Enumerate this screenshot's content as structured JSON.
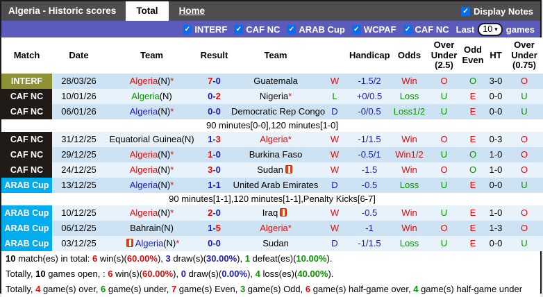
{
  "titlebar": {
    "title": "Algeria - Historic scores",
    "tabs": [
      {
        "label": "Total",
        "active": true
      },
      {
        "label": "Home",
        "active": false
      }
    ],
    "display_notes_label": "Display Notes",
    "display_notes_checked": true
  },
  "filterbar": {
    "competitions": [
      "INTERF",
      "CAF NC",
      "ARAB Cup",
      "WCPAF",
      "CAF NC"
    ],
    "last_label": "Last",
    "games_count": "10",
    "games_label": "games"
  },
  "colors": {
    "accent_bar": "#5b5bbb",
    "interf": "#8e9134",
    "caf_nc": "#201b16",
    "arab_cup": "#00aeef",
    "win_red": "#e20a0a",
    "loss_green": "#089000",
    "draw_navy": "#1a1ab8"
  },
  "table": {
    "headers": [
      "Match",
      "Date",
      "Team",
      "Result",
      "Team",
      "",
      "Handicap",
      "Odds",
      "Over Under (2.5)",
      "Odd Even",
      "HT",
      "Over Under (0.75)"
    ],
    "rows": [
      {
        "type": "match",
        "comp": "INTERF",
        "compClass": "comp-interf",
        "date": "28/03/26",
        "home": [
          {
            "t": "Algeria",
            "c": "red"
          },
          {
            "t": "(N)",
            "c": "black"
          },
          {
            "t": "*",
            "c": "red"
          }
        ],
        "score": [
          {
            "t": "7",
            "c": "red"
          },
          {
            "t": "-",
            "c": "navy"
          },
          {
            "t": "0",
            "c": "navy"
          }
        ],
        "away": [
          {
            "t": "Guatemala",
            "c": "black"
          }
        ],
        "wld": {
          "t": "W",
          "c": "red"
        },
        "handicap": "-1.5/2",
        "odds": {
          "t": "Win",
          "c": "red"
        },
        "ou25": {
          "t": "O",
          "c": "red"
        },
        "oddEven": {
          "t": "O",
          "c": "green"
        },
        "ht": "3-0",
        "ou075": {
          "t": "O",
          "c": "red"
        }
      },
      {
        "type": "match",
        "comp": "CAF NC",
        "compClass": "comp-cafnc",
        "date": "10/01/26",
        "home": [
          {
            "t": "Algeria",
            "c": "green"
          },
          {
            "t": "(N)",
            "c": "black"
          }
        ],
        "score": [
          {
            "t": "0",
            "c": "navy"
          },
          {
            "t": "-",
            "c": "navy"
          },
          {
            "t": "2",
            "c": "red"
          }
        ],
        "away": [
          {
            "t": "Nigeria",
            "c": "black"
          },
          {
            "t": "*",
            "c": "red"
          }
        ],
        "wld": {
          "t": "L",
          "c": "green"
        },
        "handicap": "+0/0.5",
        "odds": {
          "t": "Loss",
          "c": "green"
        },
        "ou25": {
          "t": "U",
          "c": "green"
        },
        "oddEven": {
          "t": "E",
          "c": "red"
        },
        "ht": "0-0",
        "ou075": {
          "t": "U",
          "c": "green"
        }
      },
      {
        "type": "match",
        "comp": "CAF NC",
        "compClass": "comp-cafnc",
        "date": "06/01/26",
        "home": [
          {
            "t": "Algeria",
            "c": "navy"
          },
          {
            "t": "(N)",
            "c": "black"
          },
          {
            "t": "*",
            "c": "red"
          }
        ],
        "score": [
          {
            "t": "0",
            "c": "navy"
          },
          {
            "t": "-",
            "c": "navy"
          },
          {
            "t": "0",
            "c": "navy"
          }
        ],
        "away": [
          {
            "t": "Democratic Rep Congo",
            "c": "black"
          }
        ],
        "wld": {
          "t": "D",
          "c": "navy"
        },
        "handicap": "-0/0.5",
        "odds": {
          "t": "Loss1/2",
          "c": "green"
        },
        "ou25": {
          "t": "U",
          "c": "green"
        },
        "oddEven": {
          "t": "E",
          "c": "red"
        },
        "ht": "0-0",
        "ou075": {
          "t": "U",
          "c": "green"
        }
      },
      {
        "type": "note",
        "text": "90 minutes[0-0],120 minutes[1-0]"
      },
      {
        "type": "match",
        "comp": "CAF NC",
        "compClass": "comp-cafnc",
        "date": "31/12/25",
        "home": [
          {
            "t": "Equatorial Guinea(N)",
            "c": "black"
          }
        ],
        "score": [
          {
            "t": "1",
            "c": "navy"
          },
          {
            "t": "-",
            "c": "navy"
          },
          {
            "t": "3",
            "c": "red"
          }
        ],
        "away": [
          {
            "t": "Algeria",
            "c": "red"
          },
          {
            "t": "*",
            "c": "red"
          }
        ],
        "wld": {
          "t": "W",
          "c": "red"
        },
        "handicap": "-1/1.5",
        "odds": {
          "t": "Win",
          "c": "red"
        },
        "ou25": {
          "t": "O",
          "c": "red"
        },
        "oddEven": {
          "t": "E",
          "c": "red"
        },
        "ht": "0-3",
        "ou075": {
          "t": "O",
          "c": "red"
        }
      },
      {
        "type": "match",
        "comp": "CAF NC",
        "compClass": "comp-cafnc",
        "date": "29/12/25",
        "home": [
          {
            "t": "Algeria",
            "c": "red"
          },
          {
            "t": "(N)",
            "c": "black"
          },
          {
            "t": "*",
            "c": "red"
          }
        ],
        "score": [
          {
            "t": "1",
            "c": "red"
          },
          {
            "t": "-",
            "c": "navy"
          },
          {
            "t": "0",
            "c": "navy"
          }
        ],
        "away": [
          {
            "t": "Burkina Faso",
            "c": "black"
          }
        ],
        "wld": {
          "t": "W",
          "c": "red"
        },
        "handicap": "-0.5/1",
        "odds": {
          "t": "Win1/2",
          "c": "red"
        },
        "ou25": {
          "t": "U",
          "c": "green"
        },
        "oddEven": {
          "t": "O",
          "c": "green"
        },
        "ht": "1-0",
        "ou075": {
          "t": "O",
          "c": "red"
        }
      },
      {
        "type": "match",
        "comp": "CAF NC",
        "compClass": "comp-cafnc",
        "date": "24/12/25",
        "home": [
          {
            "t": "Algeria",
            "c": "red"
          },
          {
            "t": "(N)",
            "c": "black"
          },
          {
            "t": "*",
            "c": "red"
          }
        ],
        "score": [
          {
            "t": "3",
            "c": "red"
          },
          {
            "t": "-",
            "c": "navy"
          },
          {
            "t": "0",
            "c": "navy"
          }
        ],
        "away": [
          {
            "t": "Sudan",
            "c": "black"
          },
          {
            "icon": true
          }
        ],
        "wld": {
          "t": "W",
          "c": "red"
        },
        "handicap": "-1.5",
        "odds": {
          "t": "Win",
          "c": "red"
        },
        "ou25": {
          "t": "O",
          "c": "red"
        },
        "oddEven": {
          "t": "O",
          "c": "green"
        },
        "ht": "1-0",
        "ou075": {
          "t": "O",
          "c": "red"
        }
      },
      {
        "type": "match",
        "comp": "ARAB Cup",
        "compClass": "comp-arab",
        "date": "13/12/25",
        "home": [
          {
            "t": "Algeria",
            "c": "navy"
          },
          {
            "t": "(N)",
            "c": "black"
          },
          {
            "t": "*",
            "c": "red"
          }
        ],
        "score": [
          {
            "t": "1",
            "c": "navy"
          },
          {
            "t": "-",
            "c": "navy"
          },
          {
            "t": "1",
            "c": "navy"
          }
        ],
        "away": [
          {
            "t": "United Arab Emirates",
            "c": "black"
          }
        ],
        "wld": {
          "t": "D",
          "c": "navy"
        },
        "handicap": "-0.5",
        "odds": {
          "t": "Loss",
          "c": "green"
        },
        "ou25": {
          "t": "U",
          "c": "green"
        },
        "oddEven": {
          "t": "E",
          "c": "red"
        },
        "ht": "0-0",
        "ou075": {
          "t": "U",
          "c": "green"
        }
      },
      {
        "type": "note",
        "text": "90 minutes[1-1],120 minutes[1-1],Penalty Kicks[6-7]"
      },
      {
        "type": "match",
        "comp": "ARAB Cup",
        "compClass": "comp-arab",
        "date": "10/12/25",
        "home": [
          {
            "t": "Algeria",
            "c": "red"
          },
          {
            "t": "(N)",
            "c": "black"
          },
          {
            "t": "*",
            "c": "red"
          }
        ],
        "score": [
          {
            "t": "2",
            "c": "red"
          },
          {
            "t": "-",
            "c": "navy"
          },
          {
            "t": "0",
            "c": "navy"
          }
        ],
        "away": [
          {
            "t": "Iraq",
            "c": "black"
          },
          {
            "icon": true
          }
        ],
        "wld": {
          "t": "W",
          "c": "red"
        },
        "handicap": "-0.5",
        "odds": {
          "t": "Win",
          "c": "red"
        },
        "ou25": {
          "t": "U",
          "c": "green"
        },
        "oddEven": {
          "t": "E",
          "c": "red"
        },
        "ht": "1-0",
        "ou075": {
          "t": "O",
          "c": "red"
        }
      },
      {
        "type": "match",
        "comp": "ARAB Cup",
        "compClass": "comp-arab",
        "date": "06/12/25",
        "home": [
          {
            "t": "Bahrain(N)",
            "c": "black"
          }
        ],
        "score": [
          {
            "t": "1",
            "c": "navy"
          },
          {
            "t": "-",
            "c": "navy"
          },
          {
            "t": "5",
            "c": "red"
          }
        ],
        "away": [
          {
            "t": "Algeria",
            "c": "red"
          },
          {
            "t": "*",
            "c": "red"
          }
        ],
        "wld": {
          "t": "W",
          "c": "red"
        },
        "handicap": "-1",
        "odds": {
          "t": "Win",
          "c": "red"
        },
        "ou25": {
          "t": "O",
          "c": "red"
        },
        "oddEven": {
          "t": "E",
          "c": "red"
        },
        "ht": "1-3",
        "ou075": {
          "t": "O",
          "c": "red"
        }
      },
      {
        "type": "match",
        "comp": "ARAB Cup",
        "compClass": "comp-arab",
        "date": "03/12/25",
        "home": [
          {
            "icon": true
          },
          {
            "t": "Algeria",
            "c": "navy"
          },
          {
            "t": "(N)",
            "c": "black"
          },
          {
            "t": "*",
            "c": "red"
          }
        ],
        "score": [
          {
            "t": "0",
            "c": "navy"
          },
          {
            "t": "-",
            "c": "navy"
          },
          {
            "t": "0",
            "c": "navy"
          }
        ],
        "away": [
          {
            "t": "Sudan",
            "c": "black"
          }
        ],
        "wld": {
          "t": "D",
          "c": "navy"
        },
        "handicap": "-1/1.5",
        "odds": {
          "t": "Loss",
          "c": "green"
        },
        "ou25": {
          "t": "U",
          "c": "green"
        },
        "oddEven": {
          "t": "E",
          "c": "red"
        },
        "ht": "0-0",
        "ou075": {
          "t": "U",
          "c": "green"
        }
      }
    ]
  },
  "summary": [
    {
      "parts": [
        {
          "t": "10",
          "c": "black",
          "b": true
        },
        {
          "t": " match(es) in total: "
        },
        {
          "t": "6",
          "c": "red",
          "b": true
        },
        {
          "t": " win(s)("
        },
        {
          "t": "60.00%",
          "c": "red",
          "b": true
        },
        {
          "t": "), "
        },
        {
          "t": "3",
          "c": "navy",
          "b": true
        },
        {
          "t": " draw(s)("
        },
        {
          "t": "30.00%",
          "c": "navy",
          "b": true
        },
        {
          "t": "), "
        },
        {
          "t": "1",
          "c": "green",
          "b": true
        },
        {
          "t": " defeat(es)("
        },
        {
          "t": "10.00%",
          "c": "green",
          "b": true
        },
        {
          "t": ")."
        }
      ]
    },
    {
      "parts": [
        {
          "t": "Totally, "
        },
        {
          "t": "10",
          "c": "black",
          "b": true
        },
        {
          "t": " games open, : "
        },
        {
          "t": "6",
          "c": "red",
          "b": true
        },
        {
          "t": " win(s)("
        },
        {
          "t": "60.00%",
          "c": "red",
          "b": true
        },
        {
          "t": "), "
        },
        {
          "t": "0",
          "c": "navy",
          "b": true
        },
        {
          "t": " draw(s)("
        },
        {
          "t": "0.00%",
          "c": "navy",
          "b": true
        },
        {
          "t": "), "
        },
        {
          "t": "4",
          "c": "green",
          "b": true
        },
        {
          "t": " loss(es)("
        },
        {
          "t": "40.00%",
          "c": "green",
          "b": true
        },
        {
          "t": ")."
        }
      ]
    },
    {
      "parts": [
        {
          "t": "Totally, "
        },
        {
          "t": "4",
          "c": "red",
          "b": true
        },
        {
          "t": " game(s) over, "
        },
        {
          "t": "6",
          "c": "green",
          "b": true
        },
        {
          "t": " game(s) under, "
        },
        {
          "t": "7",
          "c": "red",
          "b": true
        },
        {
          "t": " game(s) Even, "
        },
        {
          "t": "3",
          "c": "green",
          "b": true
        },
        {
          "t": " game(s) Odd, "
        },
        {
          "t": "6",
          "c": "red",
          "b": true
        },
        {
          "t": " game(s) half-game over, "
        },
        {
          "t": "4",
          "c": "green",
          "b": true
        },
        {
          "t": " game(s) half-game under"
        }
      ]
    }
  ]
}
